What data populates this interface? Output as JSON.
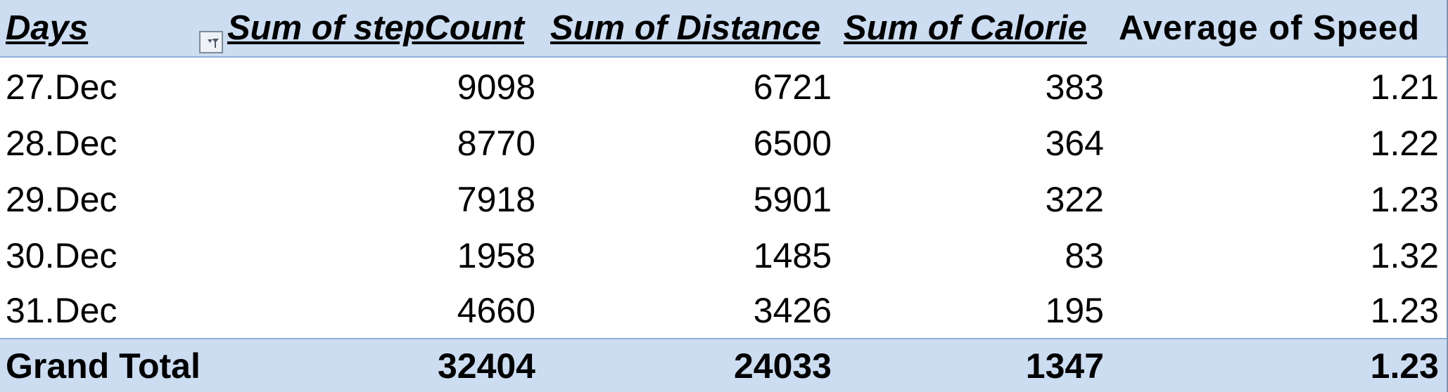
{
  "pivot": {
    "headers": {
      "days": "Days",
      "step_count": "Sum of stepCount",
      "distance": "Sum of Distance",
      "calorie": "Sum of Calorie",
      "speed": "Average of Speed"
    },
    "rows": [
      {
        "day": "27.Dec",
        "step_count": "9098",
        "distance": "6721",
        "calorie": "383",
        "speed": "1.21"
      },
      {
        "day": "28.Dec",
        "step_count": "8770",
        "distance": "6500",
        "calorie": "364",
        "speed": "1.22"
      },
      {
        "day": "29.Dec",
        "step_count": "7918",
        "distance": "5901",
        "calorie": "322",
        "speed": "1.23"
      },
      {
        "day": "30.Dec",
        "step_count": "1958",
        "distance": "1485",
        "calorie": "83",
        "speed": "1.32"
      },
      {
        "day": "31.Dec",
        "step_count": "4660",
        "distance": "3426",
        "calorie": "195",
        "speed": "1.23"
      }
    ],
    "grand_total": {
      "label": "Grand Total",
      "step_count": "32404",
      "distance": "24033",
      "calorie": "1347",
      "speed": "1.23"
    },
    "filter_icon": "filter-dropdown-icon",
    "colors": {
      "header_background": "#ccdcf1",
      "border": "#8fb0d8",
      "selection_accent": "#2e7d32"
    }
  }
}
